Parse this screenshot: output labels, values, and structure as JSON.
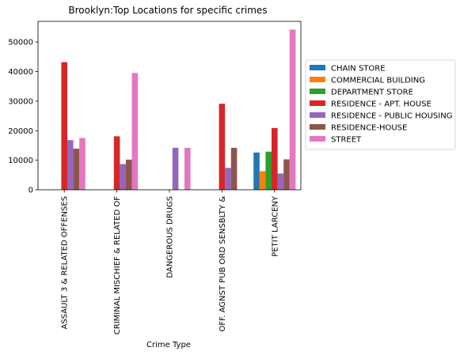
{
  "chart_data": {
    "type": "bar",
    "title": "Brooklyn:Top Locations for specific crimes",
    "xlabel": "Crime Type",
    "ylabel": "",
    "ylim": [
      0,
      57000
    ],
    "yticks": [
      0,
      10000,
      20000,
      30000,
      40000,
      50000
    ],
    "grid": false,
    "legend_position": "right",
    "categories": [
      "ASSAULT 3 & RELATED OFFENSES",
      "CRIMINAL MISCHIEF & RELATED OF",
      "DANGEROUS DRUGS",
      "OFF. AGNST PUB ORD SENSBLTY &",
      "PETIT LARCENY"
    ],
    "series": [
      {
        "name": "CHAIN STORE",
        "color": "#1f77b4",
        "values": [
          null,
          null,
          null,
          null,
          12600
        ]
      },
      {
        "name": "COMMERCIAL BUILDING",
        "color": "#ff7f0e",
        "values": [
          null,
          null,
          null,
          null,
          6300
        ]
      },
      {
        "name": "DEPARTMENT STORE",
        "color": "#2ca02c",
        "values": [
          null,
          null,
          null,
          null,
          12900
        ]
      },
      {
        "name": "RESIDENCE - APT. HOUSE",
        "color": "#d62728",
        "values": [
          43200,
          18100,
          null,
          29100,
          20900
        ]
      },
      {
        "name": "RESIDENCE - PUBLIC HOUSING",
        "color": "#9467bd",
        "values": [
          16800,
          8700,
          14200,
          7400,
          5500
        ]
      },
      {
        "name": "RESIDENCE-HOUSE",
        "color": "#8c564b",
        "values": [
          13900,
          10200,
          null,
          14200,
          10300
        ]
      },
      {
        "name": "STREET",
        "color": "#e377c2",
        "values": [
          17500,
          39500,
          14200,
          null,
          54200
        ]
      }
    ]
  }
}
